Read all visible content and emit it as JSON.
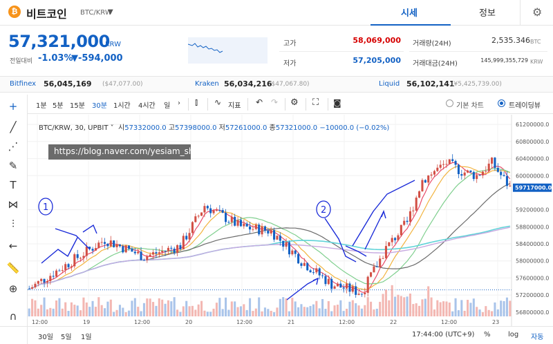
{
  "header": {
    "coin_symbol": "₿",
    "coin_name": "비트코인",
    "pair": "BTC/KRW",
    "tabs": [
      "시세",
      "정보"
    ],
    "active_tab": "시세"
  },
  "price": {
    "current": "57,321,000",
    "unit": "KRW",
    "change_label": "전일대비",
    "change_pct": "-1.03%",
    "change_amt": "▼-594,000"
  },
  "stats": {
    "high_label": "고가",
    "high": "58,069,000",
    "low_label": "저가",
    "low": "57,205,000",
    "volume_label": "거래량(24H)",
    "volume": "2,535.346",
    "volume_unit": "BTC",
    "amount_label": "거래대금(24H)",
    "amount": "145,999,355,729",
    "amount_unit": "KRW"
  },
  "exchanges": [
    {
      "name": "Bitfinex",
      "price": "56,045,169",
      "sub": "($47,077.00)"
    },
    {
      "name": "Kraken",
      "price": "56,034,216",
      "sub": "($47,067.80)"
    },
    {
      "name": "Liquid",
      "price": "56,102,141",
      "sub": "(¥5,425,739.00)"
    }
  ],
  "toolbar": {
    "intervals": [
      "1분",
      "5분",
      "15분",
      "30분",
      "1시간",
      "4시간",
      "일"
    ],
    "active_interval": "30분",
    "indicator_label": "지표",
    "mode_basic": "기본 차트",
    "mode_tv": "트레이딩뷰"
  },
  "legend": {
    "symbol": "BTC/KRW, 30, UPBIT",
    "open_label": "시",
    "open": "57332000.0",
    "high_label": "고",
    "high": "57398000.0",
    "low_label": "저",
    "low": "57261000.0",
    "close_label": "종",
    "close": "57321000.0",
    "change": "−10000.0 (−0.02%)"
  },
  "watermark": "https://blog.naver.com/yesiam_sh",
  "annotations": [
    "1",
    "2"
  ],
  "chart_data": {
    "type": "candlestick",
    "y_ticks": [
      "61200000.0",
      "60800000.0",
      "60400000.0",
      "60000000.0",
      "59200000.0",
      "58800000.0",
      "58400000.0",
      "58000000.0",
      "57600000.0",
      "57200000.0",
      "56800000.0"
    ],
    "price_label": "59717000.0",
    "x_ticks": [
      "12:00",
      "19",
      "12:00",
      "20",
      "12:00",
      "21",
      "12:00",
      "22",
      "12:00",
      "23"
    ],
    "ylim": [
      56700000,
      61300000
    ],
    "ma_colors": {
      "ma1": "#e94b6a",
      "ma2": "#f2b43f",
      "ma3": "#7fcf8e",
      "ma4": "#6b6b6b",
      "ma5": "#5fd3d8",
      "ma6": "#c6a9e0"
    }
  },
  "bottom": {
    "ranges": [
      "30일",
      "5일",
      "1일"
    ],
    "time": "17:44:00 (UTC+9)",
    "percent": "%",
    "log": "log",
    "auto": "자동"
  }
}
